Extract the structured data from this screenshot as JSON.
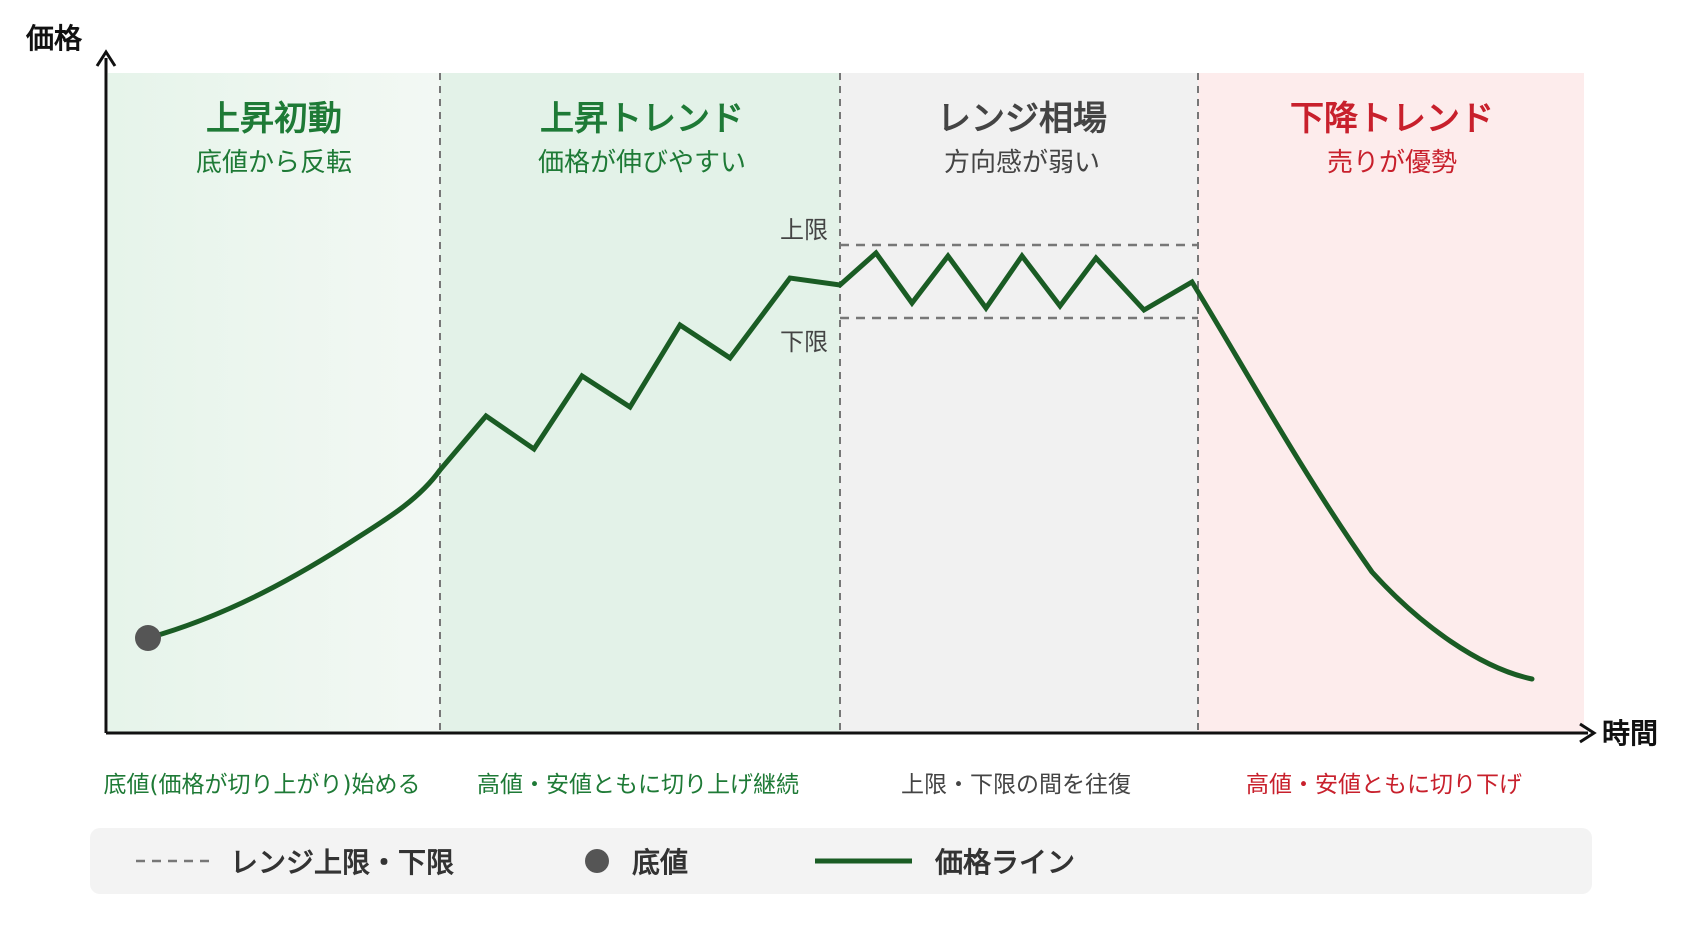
{
  "axes": {
    "y_label": "価格",
    "x_label": "時間"
  },
  "phases": [
    {
      "title": "上昇初動",
      "subtitle": "底値から反転",
      "note": "底値(価格が切り上がり)始める",
      "color": "#1e7a36",
      "bg": "#e8f5ec"
    },
    {
      "title": "上昇トレンド",
      "subtitle": "価格が伸びやすい",
      "note": "高値・安値ともに切り上げ継続",
      "color": "#1e7a36",
      "bg": "#e3f2e8"
    },
    {
      "title": "レンジ相場",
      "subtitle": "方向感が弱い",
      "note": "上限・下限の間を往復",
      "color": "#444444",
      "bg": "#f1f1f1"
    },
    {
      "title": "下降トレンド",
      "subtitle": "売りが優勢",
      "note": "高値・安値ともに切り下げ",
      "color": "#c8202c",
      "bg": "#fdecec"
    }
  ],
  "range_lines": {
    "upper_label": "上限",
    "lower_label": "下限"
  },
  "legend": {
    "range_label": "レンジ上限・下限",
    "bottom_label": "底値",
    "price_label": "価格ライン"
  },
  "colors": {
    "price_line": "#1a5c24",
    "bottom_dot": "#555555",
    "dashed": "#777777",
    "axis": "#111111"
  }
}
